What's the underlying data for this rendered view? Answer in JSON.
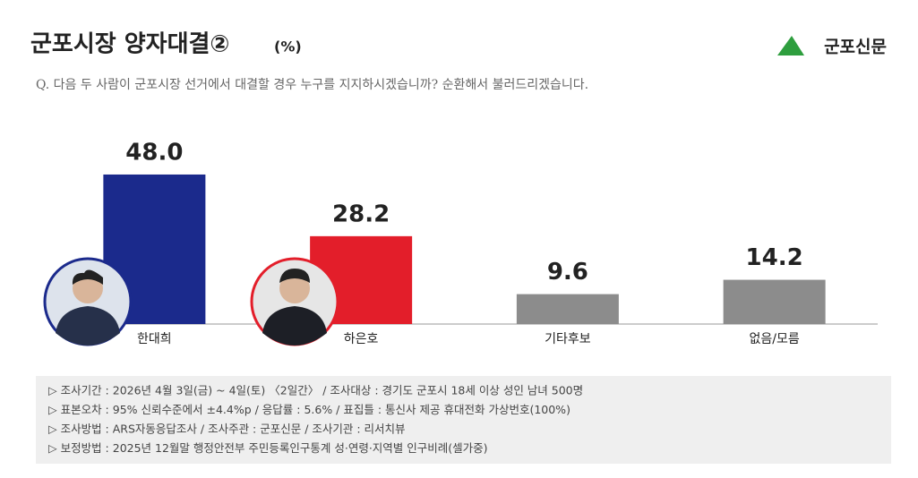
{
  "chart_data": {
    "type": "bar",
    "title": "군포시장 양자대결②",
    "unit": "(%)",
    "subtitle": "Q. 다음 두 사람이 군포시장 선거에서 대결할 경우 누구를 지지하시겠습니까? 순환해서 불러드리겠습니다.",
    "source": "군포신문",
    "categories": [
      "한대희",
      "하은호",
      "기타후보",
      "없음/모름"
    ],
    "values": [
      48.0,
      28.2,
      9.6,
      14.2
    ],
    "value_labels": [
      "48.0",
      "28.2",
      "9.6",
      "14.2"
    ],
    "colors": [
      "#1b2a8c",
      "#e31e2a",
      "#8c8c8c",
      "#8c8c8c"
    ],
    "ylim": [
      0,
      50
    ],
    "notes": [
      "▷ 조사기간 : 2026년 4월 3일(금) ~ 4일(토) 〈2일간〉 / 조사대상 : 경기도 군포시 18세 이상 성인 남녀 500명",
      "▷ 표본오차 : 95% 신뢰수준에서 ±4.4%p / 응답률 : 5.6% / 표집틀 : 통신사 제공 휴대전화 가상번호(100%)",
      "▷ 조사방법 : ARS자동응답조사 / 조사주관 : 군포신문 / 조사기관 : 리서치뷰",
      "▷ 보정방법 : 2025년 12월말 행정안전부 주민등록인구통계 성·연령·지역별 인구비례(셀가중)"
    ]
  }
}
